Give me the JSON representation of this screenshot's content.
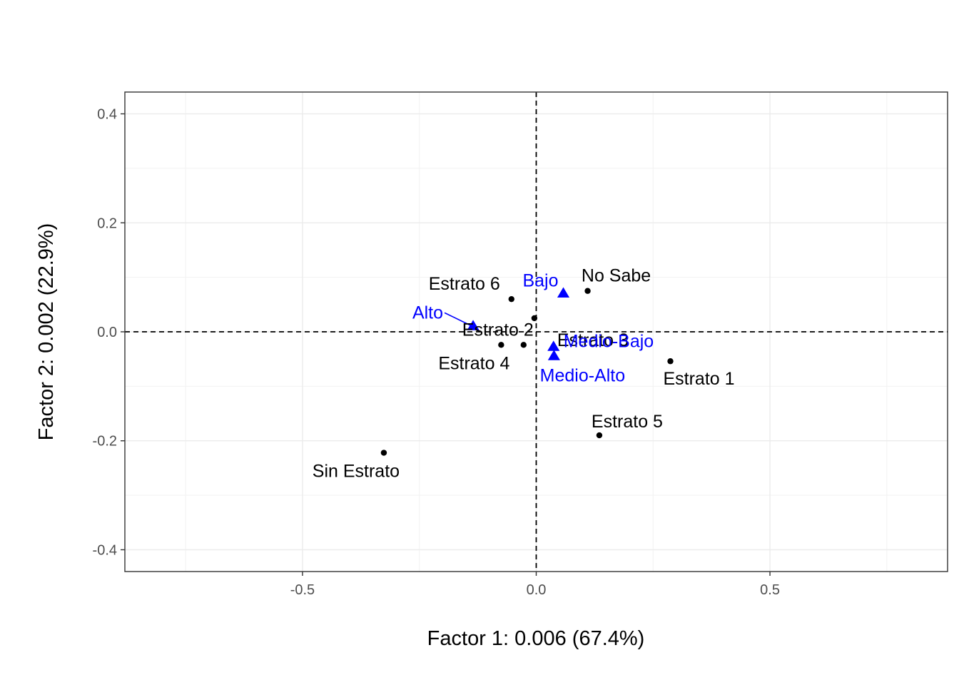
{
  "chart_data": {
    "type": "scatter",
    "title": "",
    "xlabel": "Factor 1: 0.006 (67.4%)",
    "ylabel": "Factor 2: 0.002 (22.9%)",
    "xlim": [
      -0.88,
      0.88
    ],
    "ylim": [
      -0.44,
      0.44
    ],
    "x_ticks": [
      -0.5,
      0.0,
      0.5
    ],
    "x_tick_labels": [
      "-0.5",
      "0.0",
      "0.5"
    ],
    "y_ticks": [
      -0.4,
      -0.2,
      0.0,
      0.2,
      0.4
    ],
    "y_tick_labels": [
      "-0.4",
      "-0.2",
      "0.0",
      "0.2",
      "0.4"
    ],
    "grid": true,
    "reference_lines": {
      "x": 0,
      "y": 0,
      "style": "dashed"
    },
    "series": [
      {
        "color": "#000000",
        "marker": "circle",
        "points": [
          {
            "label": "No Sabe",
            "x": 0.11,
            "y": 0.075
          },
          {
            "label": "Estrato 6",
            "x": -0.053,
            "y": 0.06
          },
          {
            "label": "Estrato 3",
            "x": -0.004,
            "y": 0.025
          },
          {
            "label": "Estrato 2",
            "x": -0.027,
            "y": -0.024
          },
          {
            "label": "Estrato 4",
            "x": -0.075,
            "y": -0.024
          },
          {
            "label": "Estrato 1",
            "x": 0.287,
            "y": -0.054
          },
          {
            "label": "Estrato 5",
            "x": 0.135,
            "y": -0.19
          },
          {
            "label": "Sin Estrato",
            "x": -0.326,
            "y": -0.222
          }
        ]
      },
      {
        "color": "#0000ff",
        "marker": "triangle",
        "points": [
          {
            "label": "Bajo",
            "x": 0.058,
            "y": 0.07
          },
          {
            "label": "Alto",
            "x": -0.135,
            "y": 0.01
          },
          {
            "label": "Medio-Bajo",
            "x": 0.037,
            "y": -0.028
          },
          {
            "label": "Medio-Alto",
            "x": 0.038,
            "y": -0.045
          }
        ]
      }
    ]
  }
}
